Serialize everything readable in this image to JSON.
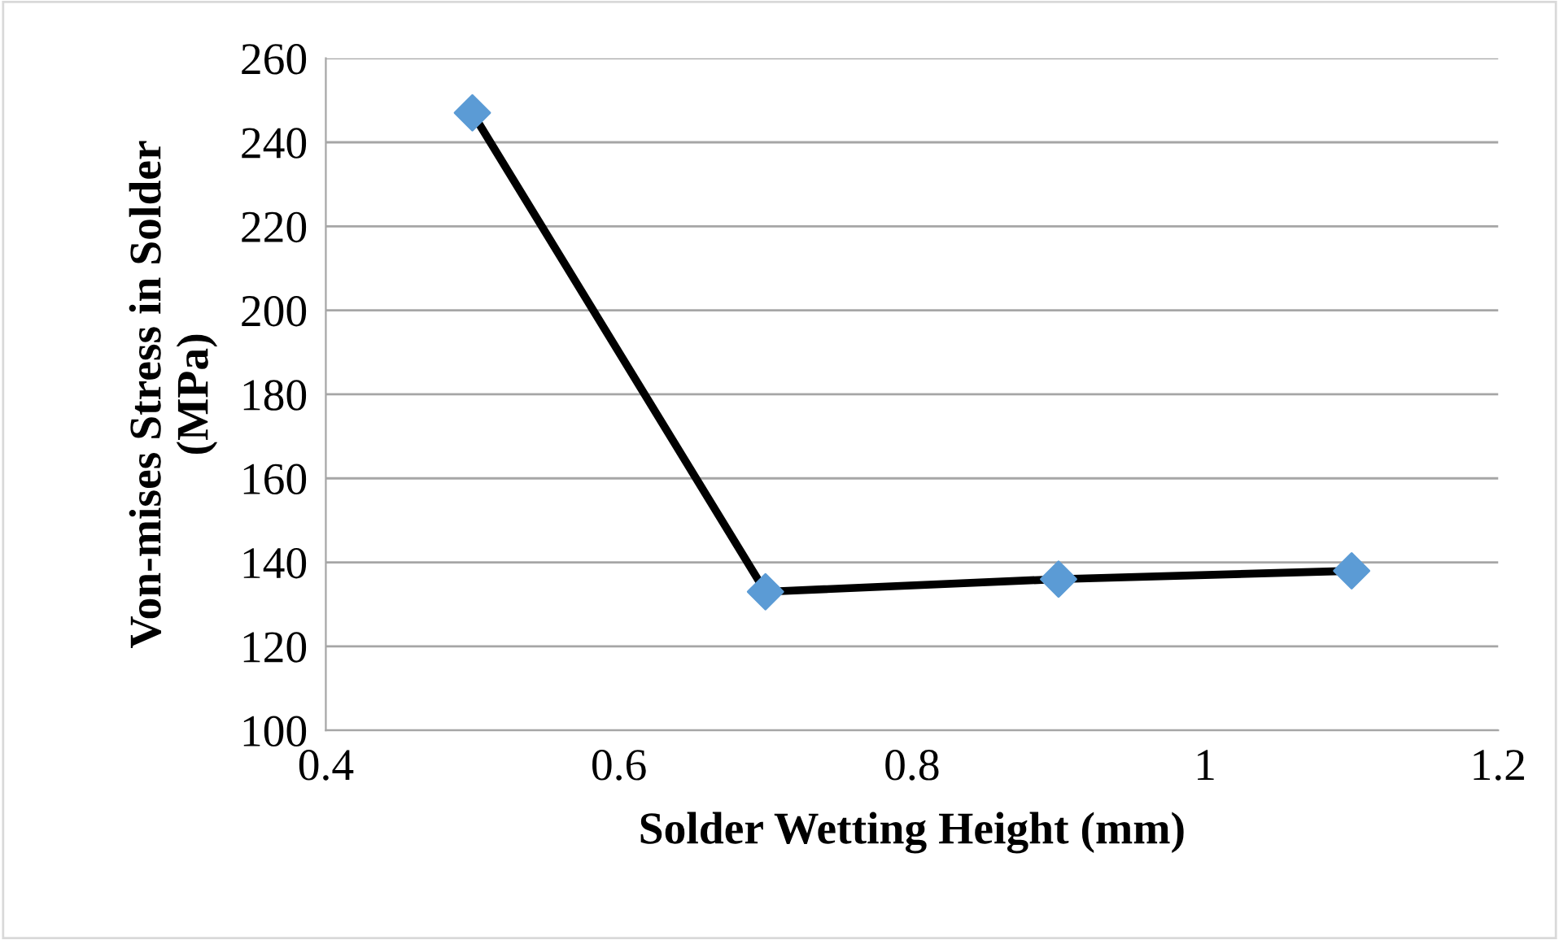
{
  "chart_data": {
    "type": "line",
    "xlabel": "Solder Wetting Height (mm)",
    "ylabel": "Von-mises Stress in Solder\n(MPa)",
    "x": [
      0.5,
      0.7,
      0.9,
      1.1
    ],
    "series": [
      {
        "color": "#000000",
        "colors": [
          "#5b9bd5",
          "#5b9bd5",
          "#5b9bd5",
          "#5b9bd5"
        ],
        "values": [
          247,
          133,
          136,
          138
        ]
      }
    ],
    "xlim": [
      0.4,
      1.2
    ],
    "xticks": [
      0.4,
      0.6,
      0.8,
      1,
      1.2
    ],
    "ylim": [
      100,
      260
    ],
    "yticks": [
      100,
      120,
      140,
      160,
      180,
      200,
      220,
      240,
      260
    ],
    "grid": "y",
    "marker": "diamond",
    "line_style": "solid"
  }
}
